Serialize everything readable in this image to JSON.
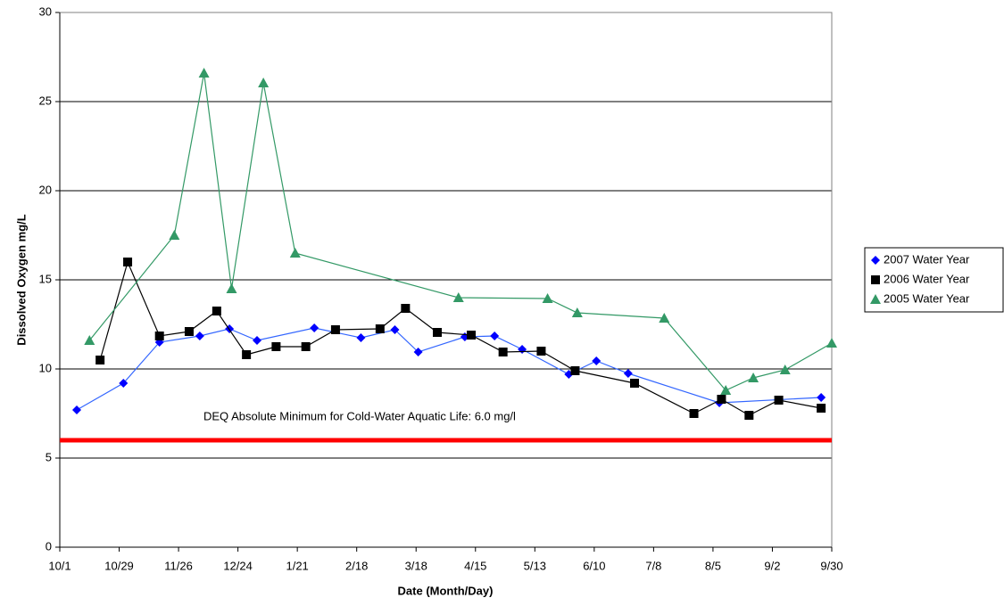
{
  "chart_data": {
    "type": "line",
    "x_label": "Date (Month/Day)",
    "y_label": "Dissolved Oxygen mg/L",
    "xlim": [
      0,
      364
    ],
    "xticks": [
      {
        "value": 0,
        "label": "10/1"
      },
      {
        "value": 28,
        "label": "10/29"
      },
      {
        "value": 56,
        "label": "11/26"
      },
      {
        "value": 84,
        "label": "12/24"
      },
      {
        "value": 112,
        "label": "1/21"
      },
      {
        "value": 140,
        "label": "2/18"
      },
      {
        "value": 168,
        "label": "3/18"
      },
      {
        "value": 196,
        "label": "4/15"
      },
      {
        "value": 224,
        "label": "5/13"
      },
      {
        "value": 252,
        "label": "6/10"
      },
      {
        "value": 280,
        "label": "7/8"
      },
      {
        "value": 308,
        "label": "8/5"
      },
      {
        "value": 336,
        "label": "9/2"
      },
      {
        "value": 364,
        "label": "9/30"
      }
    ],
    "ylim": [
      0,
      30
    ],
    "yticks": [
      0,
      5,
      10,
      15,
      20,
      25,
      30
    ],
    "grid": true,
    "legend": "right",
    "threshold": {
      "value": 6,
      "label": "DEQ Absolute Minimum for Cold-Water Aquatic Life: 6.0 mg/l",
      "color": "#ff0000"
    },
    "series": [
      {
        "name": "2007 Water Year",
        "color": "#0000ff",
        "line_color": "#3366ff",
        "marker": "diamond",
        "x": [
          8,
          30,
          47,
          66,
          80,
          93,
          120,
          142,
          158,
          169,
          191,
          205,
          218,
          240,
          253,
          268,
          311,
          359
        ],
        "values": [
          7.7,
          9.2,
          11.5,
          11.85,
          12.25,
          11.6,
          12.3,
          11.75,
          12.2,
          10.95,
          11.8,
          11.85,
          11.1,
          9.7,
          10.45,
          9.75,
          8.1,
          8.4
        ]
      },
      {
        "name": "2006 Water Year",
        "color": "#000000",
        "line_color": "#000000",
        "marker": "square",
        "x": [
          19,
          32,
          47,
          61,
          74,
          88,
          102,
          116,
          130,
          151,
          163,
          178,
          194,
          209,
          227,
          243,
          271,
          299,
          312,
          325,
          339,
          359
        ],
        "values": [
          10.5,
          16,
          11.85,
          12.1,
          13.25,
          10.8,
          11.25,
          11.25,
          12.2,
          12.25,
          13.4,
          12.05,
          11.9,
          10.95,
          11,
          9.9,
          9.2,
          7.5,
          8.3,
          7.4,
          8.25,
          7.8
        ]
      },
      {
        "name": "2005 Water Year",
        "color": "#339966",
        "line_color": "#339966",
        "marker": "triangle",
        "x": [
          14,
          54,
          68,
          81,
          96,
          111,
          188,
          230,
          244,
          285,
          314,
          327,
          342,
          364
        ],
        "values": [
          11.6,
          17.5,
          26.6,
          14.5,
          26.05,
          16.5,
          14,
          13.95,
          13.15,
          12.85,
          8.8,
          9.5,
          9.95,
          11.45
        ]
      }
    ]
  }
}
